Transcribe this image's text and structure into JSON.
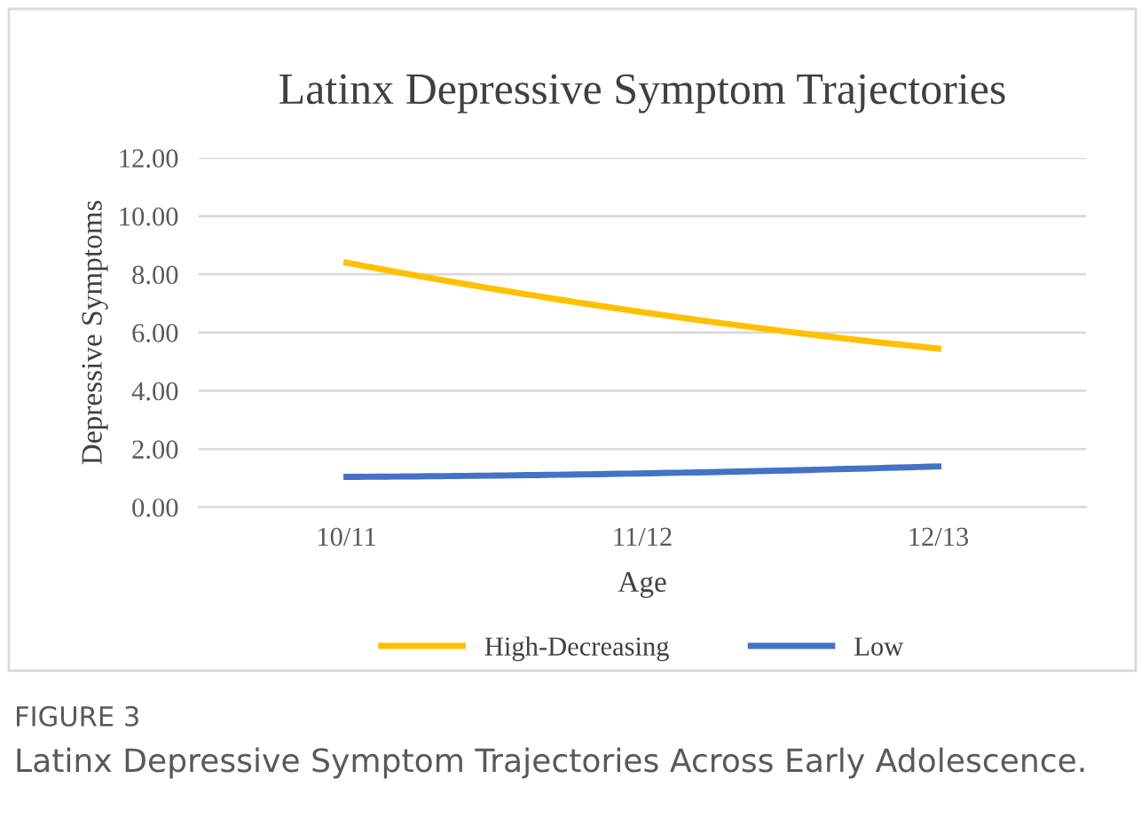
{
  "chart_data": {
    "type": "line",
    "title": "Latinx Depressive Symptom Trajectories",
    "xlabel": "Age",
    "ylabel": "Depressive Symptoms",
    "categories": [
      "10/11",
      "11/12",
      "12/13"
    ],
    "series": [
      {
        "name": "High-Decreasing",
        "color": "#ffc000",
        "values": [
          8.4,
          6.7,
          5.45
        ]
      },
      {
        "name": "Low",
        "color": "#4472c4",
        "values": [
          1.04,
          1.16,
          1.4
        ]
      }
    ],
    "ylim": [
      0,
      12
    ],
    "yticks": [
      {
        "value": 0,
        "label": "0.00"
      },
      {
        "value": 2,
        "label": "2.00"
      },
      {
        "value": 4,
        "label": "4.00"
      },
      {
        "value": 6,
        "label": "6.00"
      },
      {
        "value": 8,
        "label": "8.00"
      },
      {
        "value": 10,
        "label": "10.00"
      },
      {
        "value": 12,
        "label": "12.00"
      }
    ],
    "grid": "y",
    "legend": "bottom",
    "marker": "none",
    "line_style": "solid",
    "annotations": [
      "FIGURE 3",
      "Latinx Depressive Symptom Trajectories Across Early Adolescence."
    ]
  }
}
